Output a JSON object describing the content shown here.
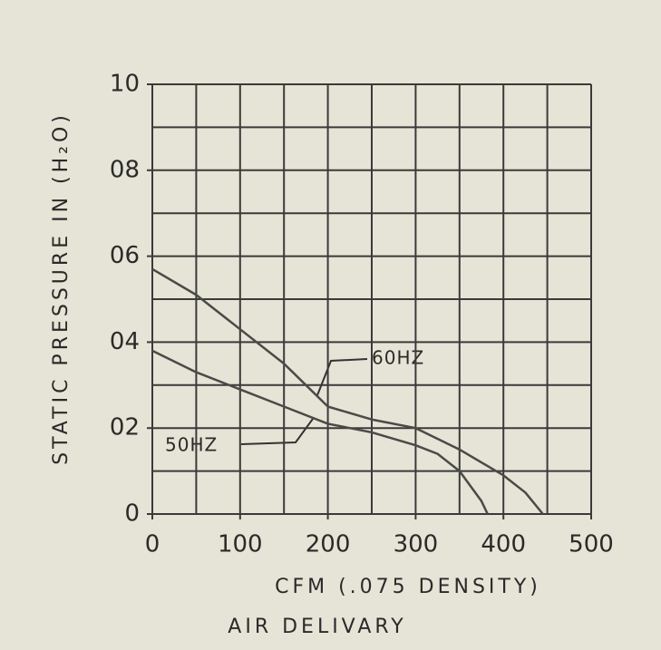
{
  "chart_data": {
    "type": "line",
    "ylabel": "STATIC PRESSURE IN (H₂O)",
    "xlabel": "CFM (.075 DENSITY)",
    "subtitle": "AIR DELIVARY",
    "xlim": [
      0,
      500
    ],
    "ylim": [
      0,
      1.0
    ],
    "xticks": [
      0,
      100,
      200,
      300,
      400,
      500
    ],
    "yticks": [
      {
        "value": 0,
        "label": "0"
      },
      {
        "value": 0.2,
        "label": "02"
      },
      {
        "value": 0.4,
        "label": "04"
      },
      {
        "value": 0.6,
        "label": "06"
      },
      {
        "value": 0.8,
        "label": "08"
      },
      {
        "value": 1.0,
        "label": "10"
      }
    ],
    "xgrid": [
      0,
      50,
      100,
      150,
      200,
      250,
      300,
      350,
      400,
      450,
      500
    ],
    "ygrid": [
      0,
      0.1,
      0.2,
      0.3,
      0.4,
      0.5,
      0.6,
      0.7,
      0.8,
      0.9,
      1.0
    ],
    "grid": true,
    "series": [
      {
        "name": "60HZ",
        "color": "#4a4a48",
        "x": [
          0,
          50,
          100,
          150,
          175,
          200,
          250,
          300,
          350,
          400,
          425,
          445
        ],
        "values": [
          0.57,
          0.51,
          0.43,
          0.35,
          0.3,
          0.25,
          0.22,
          0.2,
          0.15,
          0.09,
          0.05,
          0
        ]
      },
      {
        "name": "50HZ",
        "color": "#4a4a48",
        "x": [
          0,
          50,
          100,
          150,
          200,
          250,
          300,
          325,
          350,
          375,
          382
        ],
        "values": [
          0.38,
          0.33,
          0.29,
          0.25,
          0.21,
          0.19,
          0.16,
          0.14,
          0.1,
          0.03,
          0
        ]
      }
    ]
  }
}
